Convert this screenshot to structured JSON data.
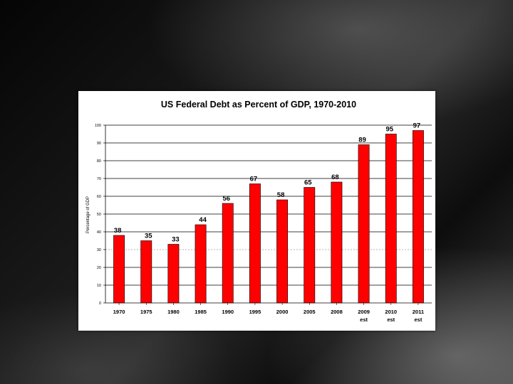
{
  "chart_data": {
    "type": "bar",
    "title": "US Federal Debt as Percent of GDP, 1970-2010",
    "xlabel": "",
    "ylabel": "Percentage of GDP",
    "ylim": [
      0,
      100
    ],
    "yticks": [
      0,
      10,
      20,
      30,
      40,
      50,
      60,
      70,
      80,
      90,
      100
    ],
    "ytick_labels": [
      "0",
      "10",
      "20",
      "30",
      "40",
      "50",
      "60",
      "70",
      "80",
      "90",
      "100"
    ],
    "categories": [
      [
        "1970"
      ],
      [
        "1975"
      ],
      [
        "1980"
      ],
      [
        "1985"
      ],
      [
        "1990"
      ],
      [
        "1995"
      ],
      [
        "2000"
      ],
      [
        "2005"
      ],
      [
        "2008"
      ],
      [
        "2009",
        "est"
      ],
      [
        "2010",
        "est"
      ],
      [
        "2011",
        "est"
      ]
    ],
    "values": [
      38,
      35,
      33,
      44,
      56,
      67,
      58,
      65,
      68,
      89,
      95,
      97
    ],
    "value_labels": [
      "38",
      "35",
      "33",
      "44",
      "56",
      "67",
      "58",
      "65",
      "68",
      "89",
      "95",
      "97"
    ],
    "bar_color": "#ff0000",
    "bar_edge_color": "#000000",
    "grid": true,
    "legend": "none"
  }
}
